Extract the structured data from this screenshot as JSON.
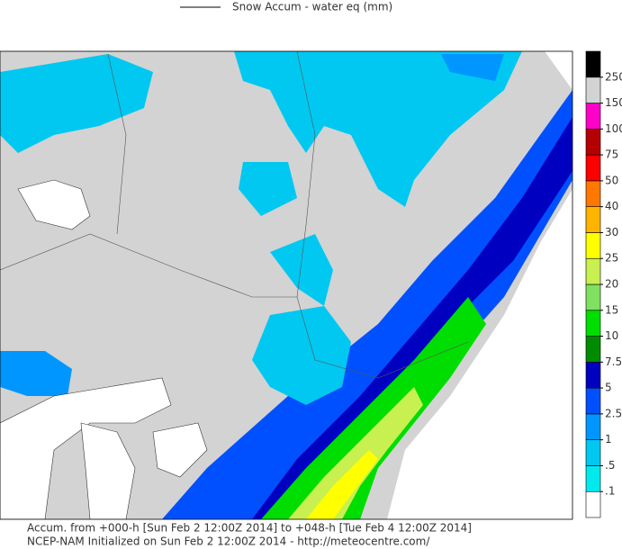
{
  "legend": {
    "label": "Snow Accum - water eq (mm)"
  },
  "colorbar": {
    "levels": [
      {
        "value": 0.1,
        "label": ".1"
      },
      {
        "value": 0.5,
        "label": ".5"
      },
      1,
      2.5,
      5,
      7.5,
      10,
      15,
      20,
      25,
      30,
      40,
      50,
      75,
      100,
      150,
      250
    ],
    "colors": [
      "#ffffff",
      "#00eaee",
      "#00c8f0",
      "#0096ff",
      "#0050ff",
      "#0000c0",
      "#008c00",
      "#00dd00",
      "#80e060",
      "#c8f050",
      "#ffff00",
      "#ffb400",
      "#ff7800",
      "#ff0000",
      "#b40000",
      "#ff00c8",
      "#d3d3d3",
      "#000000"
    ]
  },
  "footer": [
    "Accum. from +000-h [Sun Feb 2 12:00Z 2014] to +048-h [Tue Feb 4 12:00Z 2014]",
    "NCEP-NAM Initialized on Sun Feb 2 12:00Z 2014 - http://meteocentre.com/"
  ]
}
